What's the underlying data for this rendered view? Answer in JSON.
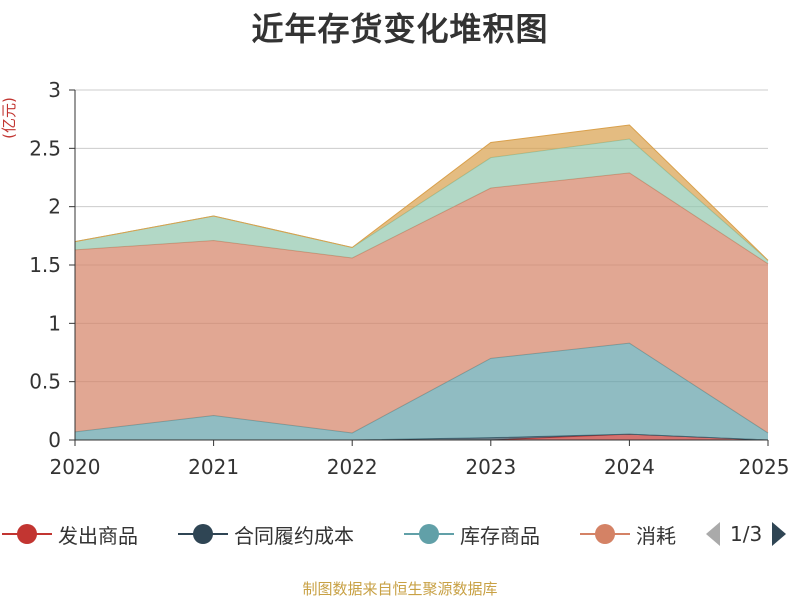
{
  "chart_data": {
    "type": "area",
    "stacked": true,
    "title": "近年存货变化堆积图",
    "ylabel": "(亿元)",
    "xlabel": "",
    "x": [
      "2020",
      "2021",
      "2022",
      "2023",
      "2024",
      "2025"
    ],
    "ylim": [
      0,
      3
    ],
    "yticks": [
      "0",
      "0.5",
      "1",
      "1.5",
      "2",
      "2.5",
      "3"
    ],
    "grid": true,
    "legend_position": "bottom",
    "series": [
      {
        "name": "发出商品",
        "color": "#c23531",
        "values": [
          0.0,
          0.0,
          0.0,
          0.0,
          0.05,
          0.0
        ]
      },
      {
        "name": "合同履约成本",
        "color": "#2f4554",
        "values": [
          0.0,
          0.0,
          0.0,
          0.02,
          0.0,
          0.0
        ]
      },
      {
        "name": "库存商品",
        "color": "#61a0a8",
        "values": [
          0.07,
          0.21,
          0.06,
          0.68,
          0.78,
          0.06
        ]
      },
      {
        "name": "消耗",
        "color": "#d48265",
        "values": [
          1.56,
          1.5,
          1.5,
          1.46,
          1.46,
          1.45
        ]
      },
      {
        "name": "",
        "color": "#91c7ae",
        "values": [
          0.07,
          0.21,
          0.09,
          0.26,
          0.29,
          0.03
        ]
      },
      {
        "name": "",
        "color": "#d9a04b",
        "values": [
          0.0,
          0.0,
          0.0,
          0.13,
          0.12,
          0.0
        ]
      }
    ]
  },
  "legend": {
    "items": [
      "发出商品",
      "合同履约成本",
      "库存商品",
      "消耗"
    ],
    "page": "1/3"
  },
  "footer": {
    "source": "制图数据来自恒生聚源数据库"
  }
}
